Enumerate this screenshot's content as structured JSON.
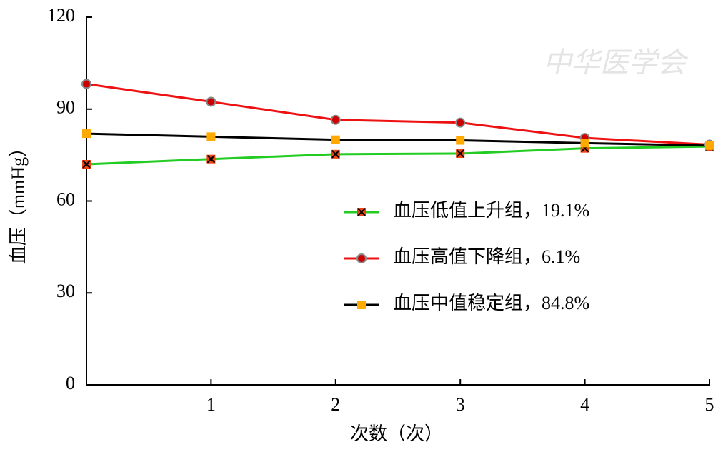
{
  "chart_data": {
    "type": "line",
    "x_label": "次数（次）",
    "y_label": "血压（mmHg）",
    "watermark": "中华医学会",
    "x": [
      0,
      1,
      2,
      3,
      4,
      5
    ],
    "xlim": [
      0,
      5
    ],
    "xticks": [
      1,
      2,
      3,
      4,
      5
    ],
    "ylim": [
      0,
      120
    ],
    "yticks": [
      0,
      30,
      60,
      90,
      120
    ],
    "legend": "right",
    "series": [
      {
        "name": "血压低值上升组，19.1%",
        "color": "#22cc22",
        "marker": "square-x",
        "marker_color": "#ee4411",
        "values": [
          72,
          73.7,
          75.3,
          75.5,
          77.2,
          77.8
        ]
      },
      {
        "name": "血压高值下降组，6.1%",
        "color": "#ee1111",
        "marker": "circle",
        "marker_color": "#cc0000",
        "values": [
          98.2,
          92.4,
          86.5,
          85.6,
          80.6,
          78.4
        ]
      },
      {
        "name": "血压中值稳定组，84.8%",
        "color": "#000000",
        "marker": "square",
        "marker_color": "#ffaa00",
        "values": [
          82,
          81,
          80,
          79.8,
          78.9,
          78.1
        ]
      }
    ]
  }
}
